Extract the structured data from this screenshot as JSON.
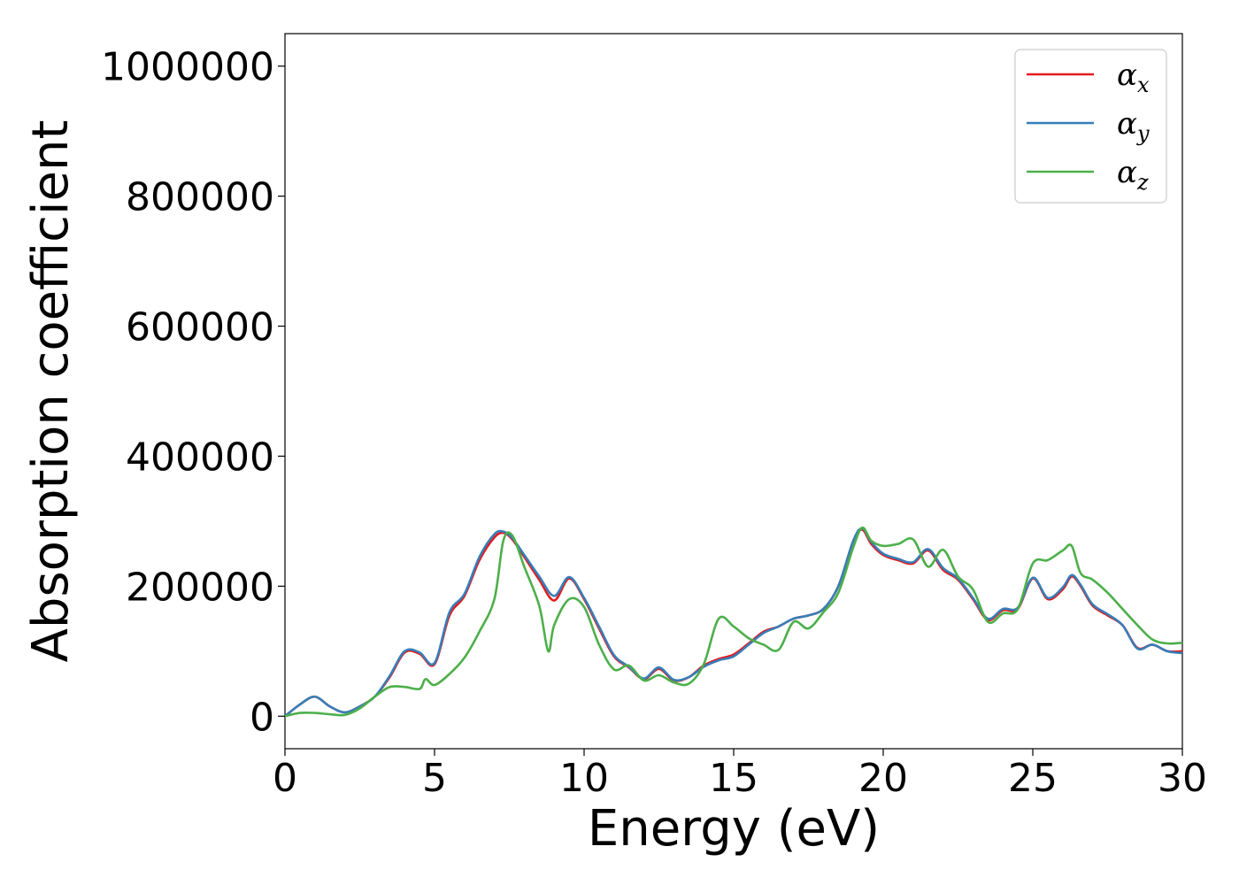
{
  "chart_data": {
    "type": "line",
    "title": "",
    "xlabel": "Energy (eV)",
    "ylabel": "Absorption coefficient",
    "xlim": [
      0,
      30
    ],
    "ylim": [
      -50000,
      1050000
    ],
    "x_ticks": [
      0,
      5,
      10,
      15,
      20,
      25,
      30
    ],
    "x_tick_labels": [
      "0",
      "5",
      "10",
      "15",
      "20",
      "25",
      "30"
    ],
    "y_ticks": [
      0,
      200000,
      400000,
      600000,
      800000,
      1000000
    ],
    "y_tick_labels": [
      "0",
      "200000",
      "400000",
      "600000",
      "800000",
      "1000000"
    ],
    "grid": false,
    "legend_position": "top-right",
    "series": [
      {
        "name": "α",
        "subscript": "x",
        "color": "#e41a1c",
        "points": [
          [
            0,
            0
          ],
          [
            0.5,
            18000
          ],
          [
            1,
            30000
          ],
          [
            1.5,
            15000
          ],
          [
            2,
            6000
          ],
          [
            2.5,
            15000
          ],
          [
            3,
            30000
          ],
          [
            3.5,
            60000
          ],
          [
            4,
            98000
          ],
          [
            4.5,
            96000
          ],
          [
            5,
            80000
          ],
          [
            5.5,
            155000
          ],
          [
            6,
            185000
          ],
          [
            6.5,
            240000
          ],
          [
            7,
            275000
          ],
          [
            7.3,
            282000
          ],
          [
            7.6,
            272000
          ],
          [
            8,
            245000
          ],
          [
            8.5,
            210000
          ],
          [
            9,
            178000
          ],
          [
            9.5,
            212000
          ],
          [
            10,
            180000
          ],
          [
            10.5,
            135000
          ],
          [
            11,
            92000
          ],
          [
            11.5,
            75000
          ],
          [
            12,
            57000
          ],
          [
            12.5,
            73000
          ],
          [
            13,
            55000
          ],
          [
            13.5,
            60000
          ],
          [
            14,
            78000
          ],
          [
            14.5,
            88000
          ],
          [
            15,
            95000
          ],
          [
            15.5,
            112000
          ],
          [
            16,
            130000
          ],
          [
            16.5,
            138000
          ],
          [
            17,
            150000
          ],
          [
            17.5,
            155000
          ],
          [
            18,
            165000
          ],
          [
            18.5,
            200000
          ],
          [
            19,
            270000
          ],
          [
            19.3,
            287000
          ],
          [
            19.6,
            265000
          ],
          [
            20,
            248000
          ],
          [
            20.5,
            240000
          ],
          [
            21,
            235000
          ],
          [
            21.5,
            255000
          ],
          [
            22,
            225000
          ],
          [
            22.5,
            210000
          ],
          [
            23,
            180000
          ],
          [
            23.5,
            148000
          ],
          [
            24,
            163000
          ],
          [
            24.5,
            165000
          ],
          [
            25,
            212000
          ],
          [
            25.5,
            180000
          ],
          [
            26,
            195000
          ],
          [
            26.3,
            215000
          ],
          [
            26.6,
            200000
          ],
          [
            27,
            170000
          ],
          [
            27.5,
            155000
          ],
          [
            28,
            140000
          ],
          [
            28.5,
            105000
          ],
          [
            29,
            110000
          ],
          [
            29.5,
            100000
          ],
          [
            30,
            100000
          ]
        ]
      },
      {
        "name": "α",
        "subscript": "y",
        "color": "#377eb8",
        "points": [
          [
            0,
            0
          ],
          [
            0.5,
            18000
          ],
          [
            1,
            30000
          ],
          [
            1.5,
            15000
          ],
          [
            2,
            6000
          ],
          [
            2.5,
            15000
          ],
          [
            3,
            30000
          ],
          [
            3.5,
            62000
          ],
          [
            4,
            100000
          ],
          [
            4.5,
            98000
          ],
          [
            5,
            82000
          ],
          [
            5.5,
            160000
          ],
          [
            6,
            188000
          ],
          [
            6.5,
            245000
          ],
          [
            7,
            280000
          ],
          [
            7.3,
            284000
          ],
          [
            7.6,
            274000
          ],
          [
            8,
            248000
          ],
          [
            8.5,
            215000
          ],
          [
            9,
            185000
          ],
          [
            9.5,
            214000
          ],
          [
            10,
            182000
          ],
          [
            10.5,
            138000
          ],
          [
            11,
            94000
          ],
          [
            11.5,
            76000
          ],
          [
            12,
            58000
          ],
          [
            12.5,
            75000
          ],
          [
            13,
            56000
          ],
          [
            13.5,
            60000
          ],
          [
            14,
            76000
          ],
          [
            14.5,
            86000
          ],
          [
            15,
            92000
          ],
          [
            15.5,
            110000
          ],
          [
            16,
            128000
          ],
          [
            16.5,
            138000
          ],
          [
            17,
            150000
          ],
          [
            17.5,
            155000
          ],
          [
            18,
            165000
          ],
          [
            18.5,
            200000
          ],
          [
            19,
            270000
          ],
          [
            19.3,
            289000
          ],
          [
            19.6,
            268000
          ],
          [
            20,
            250000
          ],
          [
            20.5,
            242000
          ],
          [
            21,
            237000
          ],
          [
            21.5,
            257000
          ],
          [
            22,
            228000
          ],
          [
            22.5,
            212000
          ],
          [
            23,
            182000
          ],
          [
            23.5,
            150000
          ],
          [
            24,
            165000
          ],
          [
            24.5,
            167000
          ],
          [
            25,
            213000
          ],
          [
            25.5,
            182000
          ],
          [
            26,
            198000
          ],
          [
            26.3,
            217000
          ],
          [
            26.6,
            202000
          ],
          [
            27,
            172000
          ],
          [
            27.5,
            157000
          ],
          [
            28,
            140000
          ],
          [
            28.5,
            104000
          ],
          [
            29,
            110000
          ],
          [
            29.5,
            100000
          ],
          [
            30,
            97000
          ]
        ]
      },
      {
        "name": "α",
        "subscript": "z",
        "color": "#4daf4a",
        "points": [
          [
            0,
            0
          ],
          [
            0.5,
            5000
          ],
          [
            1,
            5000
          ],
          [
            1.5,
            3000
          ],
          [
            2,
            2000
          ],
          [
            2.5,
            12000
          ],
          [
            3,
            30000
          ],
          [
            3.5,
            45000
          ],
          [
            4,
            45000
          ],
          [
            4.5,
            42000
          ],
          [
            4.7,
            57000
          ],
          [
            5,
            48000
          ],
          [
            5.5,
            65000
          ],
          [
            6,
            90000
          ],
          [
            6.5,
            130000
          ],
          [
            7,
            180000
          ],
          [
            7.3,
            270000
          ],
          [
            7.6,
            278000
          ],
          [
            8,
            230000
          ],
          [
            8.5,
            170000
          ],
          [
            8.8,
            100000
          ],
          [
            9,
            140000
          ],
          [
            9.5,
            180000
          ],
          [
            10,
            168000
          ],
          [
            10.5,
            110000
          ],
          [
            11,
            72000
          ],
          [
            11.5,
            78000
          ],
          [
            12,
            55000
          ],
          [
            12.5,
            63000
          ],
          [
            13,
            52000
          ],
          [
            13.5,
            50000
          ],
          [
            14,
            80000
          ],
          [
            14.5,
            150000
          ],
          [
            15,
            138000
          ],
          [
            15.5,
            120000
          ],
          [
            16,
            110000
          ],
          [
            16.5,
            102000
          ],
          [
            17,
            145000
          ],
          [
            17.5,
            135000
          ],
          [
            18,
            160000
          ],
          [
            18.5,
            190000
          ],
          [
            19,
            260000
          ],
          [
            19.3,
            290000
          ],
          [
            19.6,
            270000
          ],
          [
            20,
            262000
          ],
          [
            20.5,
            265000
          ],
          [
            21,
            272000
          ],
          [
            21.5,
            230000
          ],
          [
            22,
            256000
          ],
          [
            22.5,
            215000
          ],
          [
            23,
            195000
          ],
          [
            23.5,
            145000
          ],
          [
            24,
            158000
          ],
          [
            24.5,
            165000
          ],
          [
            25,
            235000
          ],
          [
            25.5,
            240000
          ],
          [
            26,
            255000
          ],
          [
            26.3,
            262000
          ],
          [
            26.6,
            220000
          ],
          [
            27,
            210000
          ],
          [
            27.5,
            190000
          ],
          [
            28,
            165000
          ],
          [
            28.5,
            140000
          ],
          [
            29,
            118000
          ],
          [
            29.5,
            112000
          ],
          [
            30,
            113000
          ]
        ]
      }
    ]
  }
}
